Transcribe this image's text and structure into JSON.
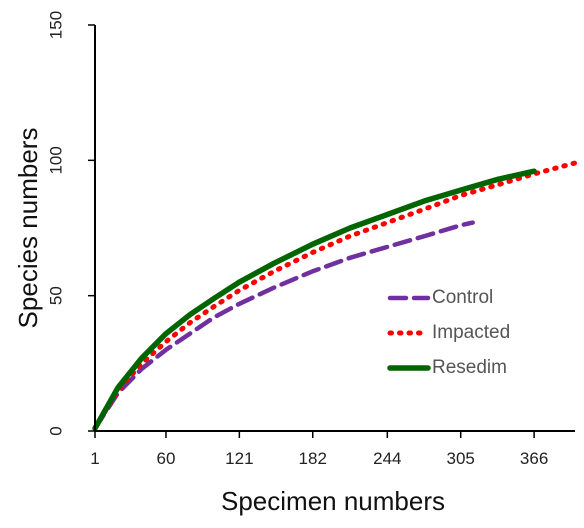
{
  "chart_data": {
    "type": "line",
    "title": "",
    "xlabel": "Specimen numbers",
    "ylabel": "Species numbers",
    "x_ticks": [
      "1",
      "60",
      "121",
      "182",
      "244",
      "305",
      "366"
    ],
    "y_ticks": [
      "0",
      "50",
      "100",
      "150"
    ],
    "xlim": [
      1,
      400
    ],
    "ylim": [
      0,
      150
    ],
    "grid": false,
    "legend_position": "right",
    "series": [
      {
        "name": "Control",
        "color": "#7030A0",
        "style": "dashed",
        "x": [
          1,
          20,
          40,
          60,
          80,
          100,
          121,
          150,
          182,
          213,
          244,
          275,
          305,
          315
        ],
        "y": [
          1,
          14,
          23,
          30,
          36,
          42,
          47,
          53,
          59,
          64,
          68,
          72,
          76,
          77
        ]
      },
      {
        "name": "Impacted",
        "color": "#FF0000",
        "style": "dotted",
        "x": [
          1,
          20,
          40,
          60,
          80,
          100,
          121,
          150,
          182,
          213,
          244,
          275,
          305,
          336,
          366,
          400
        ],
        "y": [
          1,
          15,
          25,
          33,
          40,
          46,
          52,
          59,
          66,
          72,
          77,
          82,
          87,
          91,
          95,
          99
        ]
      },
      {
        "name": "Resedim",
        "color": "#006400",
        "style": "solid",
        "x": [
          1,
          20,
          40,
          60,
          80,
          100,
          121,
          150,
          182,
          213,
          244,
          275,
          305,
          336,
          366
        ],
        "y": [
          1,
          16,
          27,
          36,
          43,
          49,
          55,
          62,
          69,
          75,
          80,
          85,
          89,
          93,
          96
        ]
      }
    ]
  }
}
